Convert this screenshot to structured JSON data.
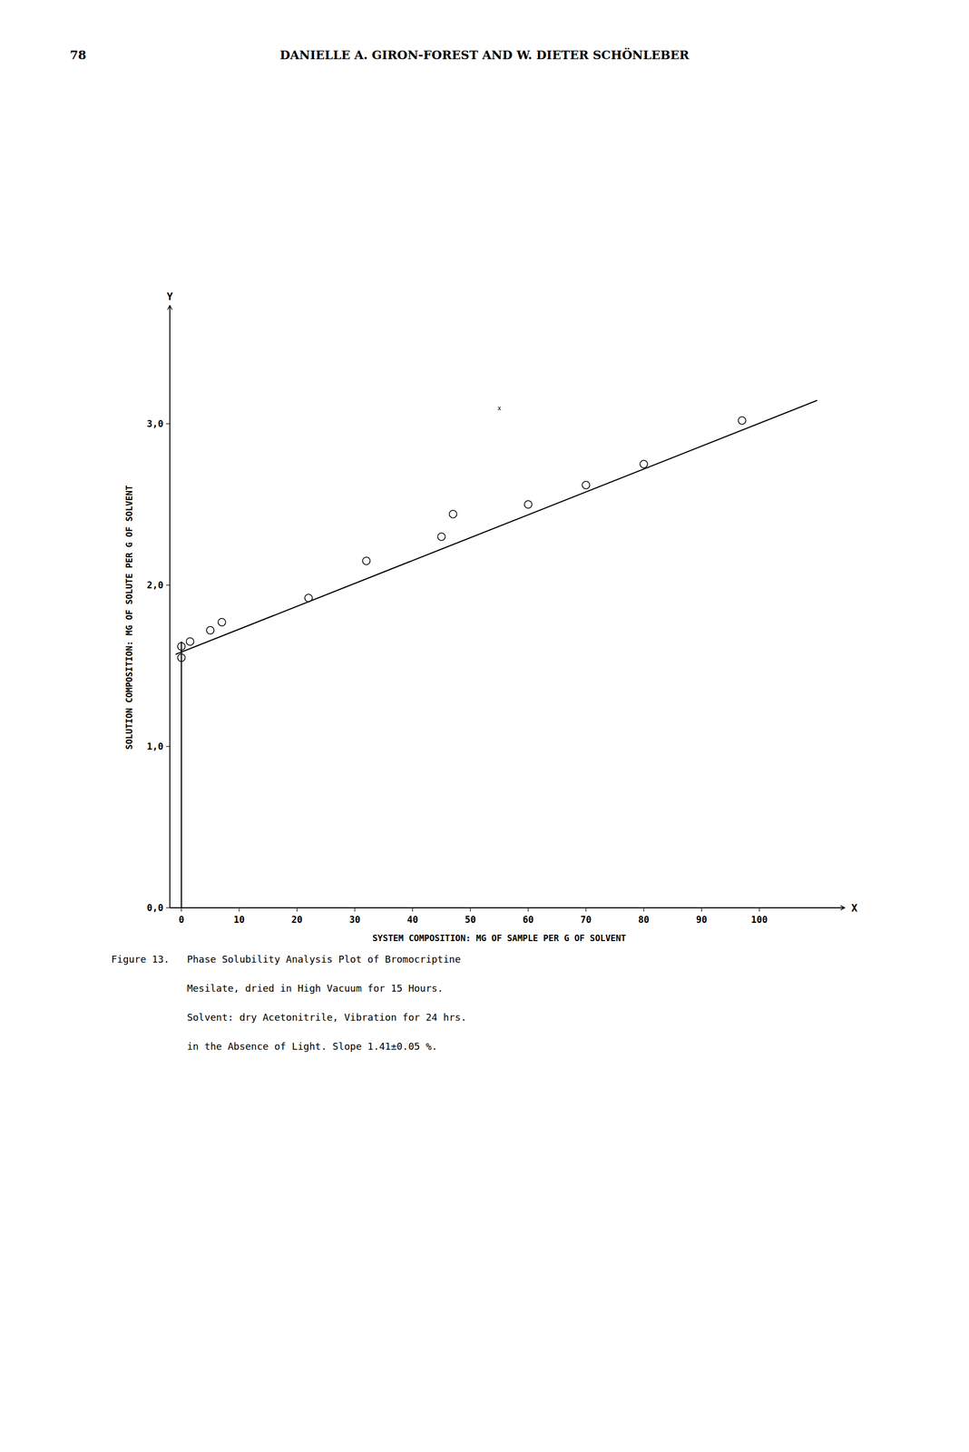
{
  "chart_data": {
    "type": "scatter",
    "title": "DANIELLE A. GIRON-FOREST AND W. DIETER SCHÖNLEBER",
    "annotations": [
      "78",
      "X",
      "Y",
      "x"
    ],
    "caption": [
      "Figure 13.   Phase Solubility Analysis Plot of Bromocriptine",
      "             Mesilate, dried in High Vacuum for 15 Hours.",
      "             Solvent: dry Acetonitrile, Vibration for 24 hrs.",
      "             in the Absence of Light. Slope 1.41±0.05 %."
    ],
    "x_label": "SYSTEM COMPOSITION: MG OF SAMPLE PER G OF SOLVENT",
    "y_label": "SOLUTION COMPOSITION: MG OF SOLUTE PER G OF SOLVENT",
    "series": [
      {
        "type": "scatter",
        "marker": "open-circle",
        "color": "black",
        "x": [
          0,
          0,
          1.5,
          5,
          7,
          22,
          32,
          45,
          47,
          60,
          70,
          80,
          97
        ],
        "values": [
          1.55,
          1.62,
          1.65,
          1.72,
          1.77,
          1.92,
          2.15,
          2.3,
          2.44,
          2.5,
          2.62,
          2.75,
          3.02
        ]
      },
      {
        "type": "line",
        "color": "black",
        "x": [
          -1,
          110
        ],
        "values": [
          1.57082,
          3.1448
        ]
      },
      {
        "type": "line",
        "color": "black",
        "x": [
          0,
          0
        ],
        "values": [
          0.0,
          1.65
        ]
      }
    ],
    "xlim": [
      -2,
      112
    ],
    "ylim": [
      0.0,
      3.6
    ],
    "xticks": [
      0,
      10,
      20,
      30,
      40,
      50,
      60,
      70,
      80,
      90,
      100
    ],
    "yticks": [
      {
        "value": 0.0,
        "label": "0,0"
      },
      {
        "value": 1.0,
        "label": "1,0"
      },
      {
        "value": 2.0,
        "label": "2,0"
      },
      {
        "value": 3.0,
        "label": "3,0"
      }
    ],
    "grid": false
  }
}
